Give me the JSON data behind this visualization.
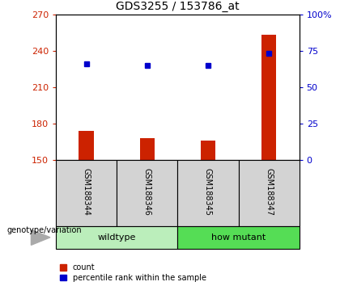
{
  "title": "GDS3255 / 153786_at",
  "samples": [
    "GSM188344",
    "GSM188346",
    "GSM188345",
    "GSM188347"
  ],
  "counts": [
    174,
    168,
    166,
    253
  ],
  "percentiles": [
    66,
    65,
    65,
    73
  ],
  "ylim_left": [
    150,
    270
  ],
  "yticks_left": [
    150,
    180,
    210,
    240,
    270
  ],
  "ylim_right": [
    0,
    100
  ],
  "yticks_right": [
    0,
    25,
    50,
    75,
    100
  ],
  "bar_color": "#CC2200",
  "dot_color": "#0000CC",
  "bar_bottom": 150,
  "bar_width": 0.25,
  "left_tick_color": "#CC2200",
  "right_tick_color": "#0000CC",
  "legend_count_label": "count",
  "legend_percentile_label": "percentile rank within the sample",
  "group_area_color_wildtype": "#BBEEBB",
  "group_area_color_mutant": "#55DD55",
  "sample_box_color": "#D3D3D3",
  "genotype_label": "genotype/variation"
}
